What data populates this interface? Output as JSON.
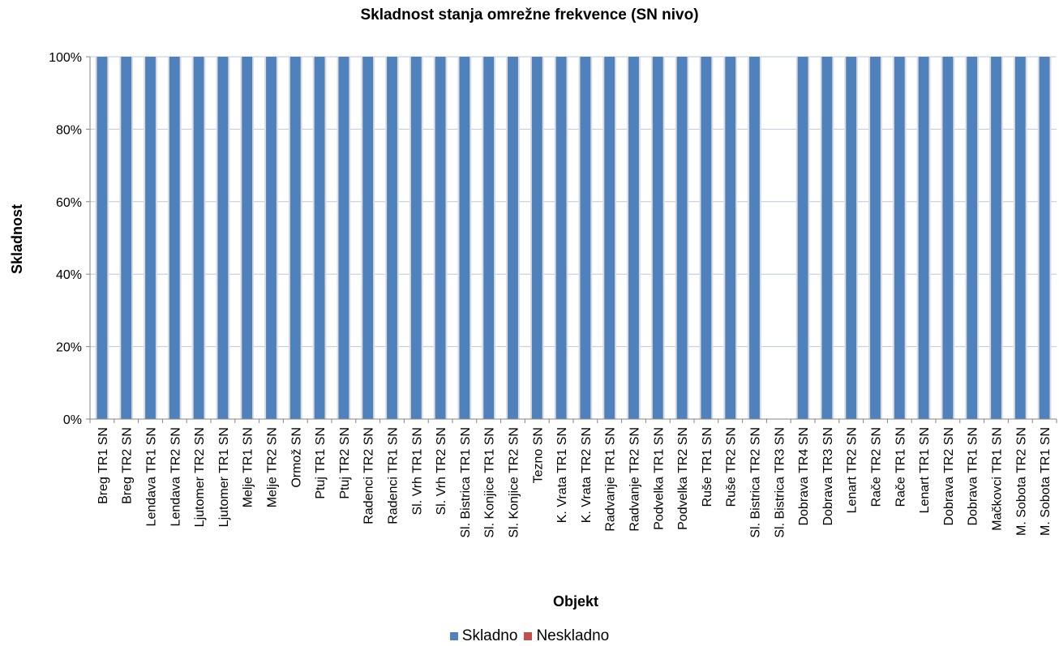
{
  "chart_data": {
    "type": "bar",
    "title": "Skladnost stanja omrežne frekvence (SN nivo)",
    "xlabel": "Objekt",
    "ylabel": "Skladnost",
    "ylim": [
      0,
      100
    ],
    "y_ticks": [
      "0%",
      "20%",
      "40%",
      "60%",
      "80%",
      "100%"
    ],
    "y_tick_values": [
      0,
      20,
      40,
      60,
      80,
      100
    ],
    "grid": true,
    "stacked": true,
    "legend_position": "bottom",
    "categories": [
      "Breg TR1 SN",
      "Breg TR2 SN",
      "Lendava TR1 SN",
      "Lendava TR2 SN",
      "Ljutomer TR2 SN",
      "Ljutomer TR1 SN",
      "Melje TR1 SN",
      "Melje TR2 SN",
      "Ormož SN",
      "Ptuj TR1 SN",
      "Ptuj TR2 SN",
      "Radenci TR2 SN",
      "Radenci TR1 SN",
      "Sl. Vrh TR1 SN",
      "Sl. Vrh TR2 SN",
      "Sl. Bistrica TR1 SN",
      "Sl. Konjice TR1 SN",
      "Sl. Konjice TR2 SN",
      "Tezno SN",
      "K. Vrata TR1 SN",
      "K. Vrata TR2 SN",
      "Radvanje TR1 SN",
      "Radvanje TR2 SN",
      "Podvelka TR1 SN",
      "Podvelka TR2 SN",
      "Ruše TR1 SN",
      "Ruše TR2 SN",
      "Sl. Bistrica TR2 SN",
      "Sl. Bistrica TR3 SN",
      "Dobrava TR4 SN",
      "Dobrava TR3 SN",
      "Lenart TR2 SN",
      "Rače TR2 SN",
      "Rače TR1 SN",
      "Lenart TR1 SN",
      "Dobrava TR2 SN",
      "Dobrava TR1 SN",
      "Mačkovci TR1 SN",
      "M. Sobota TR2 SN",
      "M. Sobota TR1 SN"
    ],
    "series": [
      {
        "name": "Skladno",
        "color": "#4f81bd",
        "values": [
          100,
          100,
          100,
          100,
          100,
          100,
          100,
          100,
          100,
          100,
          100,
          100,
          100,
          100,
          100,
          100,
          100,
          100,
          100,
          100,
          100,
          100,
          100,
          100,
          100,
          100,
          100,
          100,
          0,
          100,
          100,
          100,
          100,
          100,
          100,
          100,
          100,
          100,
          100,
          100
        ]
      },
      {
        "name": "Neskladno",
        "color": "#c0504d",
        "values": [
          0,
          0,
          0,
          0,
          0,
          0,
          0,
          0,
          0,
          0,
          0,
          0,
          0,
          0,
          0,
          0,
          0,
          0,
          0,
          0,
          0,
          0,
          0,
          0,
          0,
          0,
          0,
          0,
          0,
          0,
          0,
          0,
          0,
          0,
          0,
          0,
          0,
          0,
          0,
          0
        ]
      }
    ]
  }
}
